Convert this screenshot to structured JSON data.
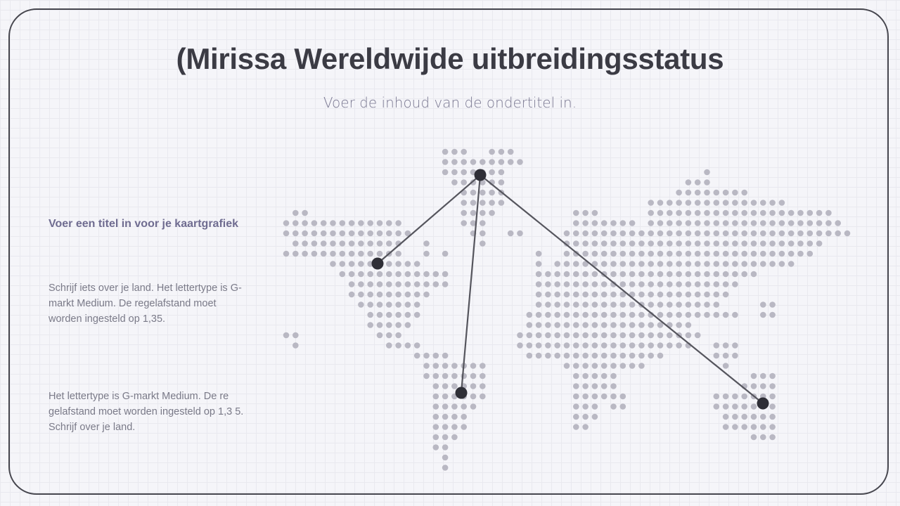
{
  "slide": {
    "title": "(Mirissa Wereldwijde uitbreidingsstatus",
    "subtitle": "Voer de inhoud van de ondertitel in."
  },
  "sidebar": {
    "map_title": "Voer een titel in voor je kaartgrafiek",
    "paragraph_1": "Schrijf iets over je land. Het lettertype is G-markt Medium. De regelafstand moet worden ingesteld op 1,35.",
    "paragraph_2": "Het lettertype is G-markt Medium. De re gelafstand moet worden ingesteld op 1,3 5. Schrijf over je land."
  },
  "map": {
    "style": "dotted world map",
    "dot_color": "#b9b8c3",
    "marker_color": "#2f2f37",
    "line_color": "#55555d",
    "connections": [
      "hub-to-north-america",
      "hub-to-south-america",
      "hub-to-australia"
    ]
  }
}
